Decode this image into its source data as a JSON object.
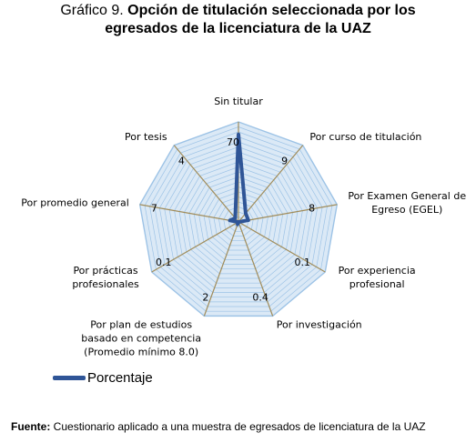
{
  "title": {
    "prefix": "Gráfico 9.",
    "line1": "Opción de titulación seleccionada por los",
    "line2": "egresados de la licenciatura de la UAZ"
  },
  "chart_data": {
    "type": "radar",
    "categories": [
      [
        "Sin titular"
      ],
      [
        "Por curso de titulación"
      ],
      [
        "Por Examen General de",
        "Egreso (EGEL)"
      ],
      [
        "Por experiencia",
        "profesional"
      ],
      [
        "Por investigación"
      ],
      [
        "Por plan de estudios",
        "basado en competencia",
        "(Promedio mínimo 8.0)"
      ],
      [
        "Por prácticas",
        "profesionales"
      ],
      [
        "Por promedio general"
      ],
      [
        "Por tesis"
      ]
    ],
    "series": [
      {
        "name": "Porcentaje",
        "values": [
          70,
          9,
          8,
          0.1,
          0.4,
          2,
          0.1,
          7,
          4
        ],
        "labels": [
          "70",
          "9",
          "8",
          "0.1",
          "0.4",
          "2",
          "0.1",
          "7",
          "4"
        ]
      }
    ],
    "max": 80,
    "gridlines": true,
    "legend_position": "bottom-left",
    "colors": {
      "series": "#2f5597",
      "grid": "#9dc3e6",
      "fill": "#dbe9f6",
      "spokes": "#a08c5a"
    }
  },
  "legend": {
    "label": "Porcentaje"
  },
  "source": {
    "bold": "Fuente:",
    "text": " Cuestionario aplicado a una muestra de egresados de licenciatura de la UAZ"
  }
}
